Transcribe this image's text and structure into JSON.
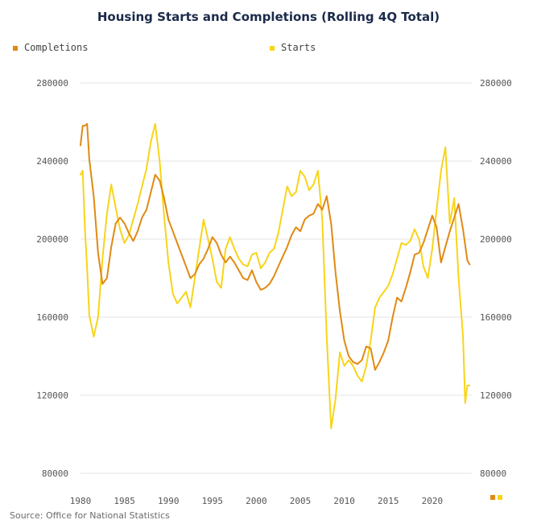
{
  "colors": {
    "completions": "#e08a12",
    "starts": "#f8d41a",
    "grid": "#e6e6e6"
  },
  "source": "Source: Office for National Statistics",
  "chart_data": {
    "type": "line",
    "title": "Housing Starts and Completions (Rolling 4Q Total)",
    "xlabel": "",
    "ylabel": "",
    "xlim": [
      1980,
      2024.5
    ],
    "ylim": [
      80000,
      280000
    ],
    "yticks": [
      80000,
      120000,
      160000,
      200000,
      240000,
      280000
    ],
    "xticks": [
      1980,
      1985,
      1990,
      1995,
      2000,
      2005,
      2010,
      2015,
      2020
    ],
    "grid": "horizontal",
    "legend_position": "top",
    "series": [
      {
        "name": "Completions",
        "color": "#e08a12",
        "x": [
          1980,
          1980.25,
          1980.5,
          1980.75,
          1981,
          1981.5,
          1982,
          1982.5,
          1983,
          1983.5,
          1984,
          1984.5,
          1985,
          1985.5,
          1986,
          1986.5,
          1987,
          1987.5,
          1988,
          1988.5,
          1989,
          1989.5,
          1990,
          1990.5,
          1991,
          1991.5,
          1992,
          1992.5,
          1993,
          1993.5,
          1994,
          1994.5,
          1995,
          1995.5,
          1996,
          1996.5,
          1997,
          1997.5,
          1998,
          1998.5,
          1999,
          1999.5,
          2000,
          2000.5,
          2001,
          2001.5,
          2002,
          2002.5,
          2003,
          2003.5,
          2004,
          2004.5,
          2005,
          2005.5,
          2006,
          2006.5,
          2007,
          2007.5,
          2008,
          2008.5,
          2009,
          2009.5,
          2010,
          2010.5,
          2011,
          2011.5,
          2012,
          2012.5,
          2013,
          2013.5,
          2014,
          2014.5,
          2015,
          2015.5,
          2016,
          2016.5,
          2017,
          2017.5,
          2018,
          2018.5,
          2019,
          2019.5,
          2020,
          2020.5,
          2021,
          2021.5,
          2022,
          2022.5,
          2023,
          2023.5,
          2024,
          2024.25
        ],
        "values": [
          248000,
          258000,
          258000,
          259000,
          241000,
          222000,
          193000,
          177000,
          180000,
          196000,
          208000,
          211000,
          208000,
          203000,
          199000,
          204000,
          211000,
          215000,
          224000,
          233000,
          230000,
          221000,
          210000,
          204000,
          198000,
          192000,
          186000,
          180000,
          182000,
          187000,
          190000,
          195000,
          201000,
          198000,
          192000,
          188000,
          191000,
          188000,
          184000,
          180000,
          179000,
          184000,
          178000,
          174000,
          175000,
          177000,
          181000,
          186000,
          191000,
          196000,
          202000,
          206000,
          204000,
          210000,
          212000,
          213000,
          218000,
          215000,
          222000,
          208000,
          183000,
          163000,
          148000,
          140000,
          137000,
          136000,
          138000,
          145000,
          144000,
          133000,
          137000,
          142000,
          148000,
          160000,
          170000,
          168000,
          175000,
          183000,
          192000,
          193000,
          198000,
          205000,
          212000,
          206000,
          188000,
          196000,
          204000,
          211000,
          218000,
          205000,
          189000,
          187000
        ]
      },
      {
        "name": "Starts",
        "color": "#f8d41a",
        "x": [
          1980,
          1980.25,
          1980.5,
          1980.75,
          1981,
          1981.5,
          1982,
          1982.5,
          1983,
          1983.5,
          1984,
          1984.5,
          1985,
          1985.5,
          1986,
          1986.5,
          1987,
          1987.5,
          1988,
          1988.5,
          1989,
          1989.5,
          1990,
          1990.5,
          1991,
          1991.5,
          1992,
          1992.5,
          1993,
          1993.5,
          1994,
          1994.5,
          1995,
          1995.5,
          1996,
          1996.5,
          1997,
          1997.5,
          1998,
          1998.5,
          1999,
          1999.5,
          2000,
          2000.5,
          2001,
          2001.5,
          2002,
          2002.5,
          2003,
          2003.5,
          2004,
          2004.5,
          2005,
          2005.5,
          2006,
          2006.5,
          2007,
          2007.5,
          2008,
          2008.5,
          2009,
          2009.5,
          2010,
          2010.5,
          2011,
          2011.5,
          2012,
          2012.5,
          2013,
          2013.5,
          2014,
          2014.5,
          2015,
          2015.5,
          2016,
          2016.5,
          2017,
          2017.5,
          2018,
          2018.5,
          2019,
          2019.5,
          2020,
          2020.5,
          2021,
          2021.5,
          2022,
          2022.5,
          2023,
          2023.5,
          2023.75,
          2024,
          2024.25
        ],
        "values": [
          233000,
          235000,
          205000,
          185000,
          161000,
          150000,
          160000,
          190000,
          213000,
          228000,
          216000,
          205000,
          198000,
          202000,
          210000,
          218000,
          227000,
          236000,
          250000,
          259000,
          240000,
          212000,
          188000,
          172000,
          167000,
          170000,
          173000,
          165000,
          180000,
          195000,
          210000,
          200000,
          190000,
          178000,
          175000,
          195000,
          201000,
          195000,
          190000,
          187000,
          186000,
          192000,
          193000,
          185000,
          188000,
          193000,
          195000,
          203000,
          215000,
          227000,
          222000,
          224000,
          235000,
          232000,
          225000,
          228000,
          235000,
          210000,
          150000,
          103000,
          118000,
          142000,
          135000,
          138000,
          135000,
          130000,
          127000,
          135000,
          148000,
          165000,
          170000,
          173000,
          176000,
          182000,
          190000,
          198000,
          197000,
          199000,
          205000,
          200000,
          186000,
          180000,
          195000,
          215000,
          235000,
          247000,
          208000,
          221000,
          180000,
          150000,
          116000,
          125000,
          125000
        ]
      }
    ]
  }
}
